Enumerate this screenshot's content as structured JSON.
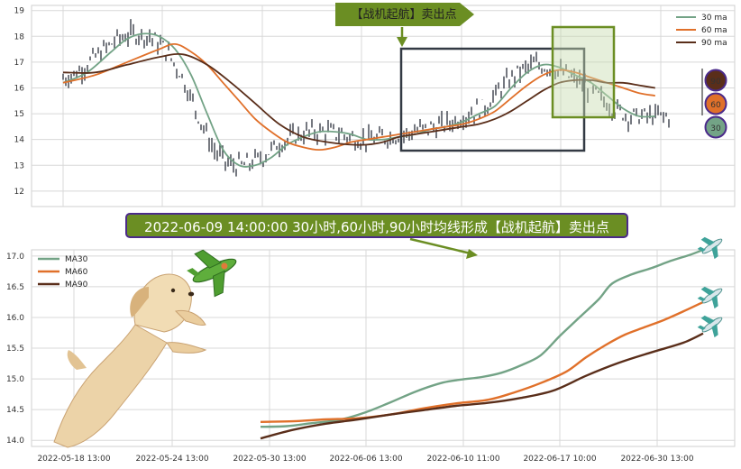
{
  "top_callout": "【战机起航】卖出点",
  "banner_text": "2022-06-09 14:00:00 30小时,60小时,90小时均线形成【战机起航】卖出点",
  "colors": {
    "ma30": "#73a386",
    "ma60": "#e0702a",
    "ma90": "#5a2e1a",
    "candle": "#3a3f4a",
    "callout": "#6b8e23",
    "badge_border": "#4b2a8a",
    "highlight_fill": "#c8dbb0",
    "highlight_stroke": "#6b8e23",
    "grid": "#d8d8d8"
  },
  "badges": [
    "90",
    "60",
    "30"
  ],
  "chart_data": [
    {
      "type": "line",
      "title": "",
      "ylim": [
        11.4,
        19.2
      ],
      "yticks": [
        "12",
        "13",
        "14",
        "15",
        "16",
        "17",
        "18",
        "19"
      ],
      "legend_position": "top-right",
      "series": [
        {
          "name": "30 ma",
          "values": [
            [
              0,
              16.2
            ],
            [
              3,
              16.6
            ],
            [
              6,
              17.4
            ],
            [
              8,
              17.9
            ],
            [
              10,
              18.1
            ],
            [
              12,
              18.0
            ],
            [
              14,
              17.5
            ],
            [
              16,
              16.5
            ],
            [
              18,
              15.0
            ],
            [
              20,
              13.6
            ],
            [
              22,
              13.0
            ],
            [
              24,
              13.0
            ],
            [
              26,
              13.3
            ],
            [
              28,
              13.8
            ],
            [
              30,
              14.1
            ],
            [
              32,
              14.3
            ],
            [
              34,
              14.3
            ],
            [
              36,
              14.2
            ],
            [
              38,
              14.0
            ],
            [
              40,
              14.0
            ],
            [
              42,
              14.1
            ],
            [
              44,
              14.2
            ],
            [
              46,
              14.4
            ],
            [
              48,
              14.5
            ],
            [
              50,
              14.7
            ],
            [
              52,
              15.0
            ],
            [
              54,
              15.3
            ],
            [
              56,
              16.0
            ],
            [
              58,
              16.6
            ],
            [
              60,
              16.9
            ],
            [
              62,
              16.8
            ],
            [
              64,
              16.5
            ],
            [
              66,
              16.2
            ],
            [
              68,
              15.7
            ],
            [
              70,
              15.2
            ],
            [
              72,
              14.9
            ],
            [
              74,
              14.9
            ]
          ]
        },
        {
          "name": "60 ma",
          "values": [
            [
              0,
              16.2
            ],
            [
              4,
              16.5
            ],
            [
              8,
              17.0
            ],
            [
              12,
              17.5
            ],
            [
              14,
              17.7
            ],
            [
              16,
              17.4
            ],
            [
              18,
              16.9
            ],
            [
              20,
              16.2
            ],
            [
              22,
              15.5
            ],
            [
              24,
              14.8
            ],
            [
              26,
              14.3
            ],
            [
              28,
              13.9
            ],
            [
              30,
              13.7
            ],
            [
              32,
              13.6
            ],
            [
              34,
              13.7
            ],
            [
              36,
              13.9
            ],
            [
              38,
              14.0
            ],
            [
              40,
              14.1
            ],
            [
              42,
              14.2
            ],
            [
              44,
              14.3
            ],
            [
              46,
              14.4
            ],
            [
              48,
              14.5
            ],
            [
              50,
              14.6
            ],
            [
              52,
              14.8
            ],
            [
              54,
              15.1
            ],
            [
              56,
              15.6
            ],
            [
              58,
              16.1
            ],
            [
              60,
              16.5
            ],
            [
              62,
              16.7
            ],
            [
              64,
              16.6
            ],
            [
              66,
              16.4
            ],
            [
              68,
              16.2
            ],
            [
              70,
              16.0
            ],
            [
              72,
              15.8
            ],
            [
              74,
              15.7
            ]
          ]
        },
        {
          "name": "90 ma",
          "values": [
            [
              0,
              16.6
            ],
            [
              4,
              16.6
            ],
            [
              8,
              16.9
            ],
            [
              12,
              17.2
            ],
            [
              15,
              17.3
            ],
            [
              18,
              16.9
            ],
            [
              21,
              16.2
            ],
            [
              24,
              15.4
            ],
            [
              27,
              14.6
            ],
            [
              30,
              14.1
            ],
            [
              33,
              13.9
            ],
            [
              36,
              13.8
            ],
            [
              38,
              13.8
            ],
            [
              40,
              13.9
            ],
            [
              42,
              14.1
            ],
            [
              44,
              14.2
            ],
            [
              46,
              14.3
            ],
            [
              48,
              14.4
            ],
            [
              50,
              14.5
            ],
            [
              52,
              14.6
            ],
            [
              54,
              14.8
            ],
            [
              56,
              15.1
            ],
            [
              58,
              15.5
            ],
            [
              60,
              15.9
            ],
            [
              62,
              16.2
            ],
            [
              64,
              16.3
            ],
            [
              66,
              16.3
            ],
            [
              68,
              16.2
            ],
            [
              70,
              16.2
            ],
            [
              72,
              16.1
            ],
            [
              74,
              16.0
            ]
          ]
        }
      ]
    },
    {
      "type": "line",
      "title": "",
      "ylim": [
        13.9,
        17.1
      ],
      "yticks": [
        "14.0",
        "14.5",
        "15.0",
        "15.5",
        "16.0",
        "16.5",
        "17.0"
      ],
      "xticks": [
        "2022-05-18 13:00",
        "2022-05-24 13:00",
        "2022-05-30 13:00",
        "2022-06-06 13:00",
        "2022-06-10 11:00",
        "2022-06-17 10:00",
        "2022-06-30 13:00"
      ],
      "legend_position": "top-left",
      "series": [
        {
          "name": "MA30",
          "values": [
            [
              0,
              14.22
            ],
            [
              8,
              14.23
            ],
            [
              16,
              14.28
            ],
            [
              24,
              14.33
            ],
            [
              32,
              14.45
            ],
            [
              40,
              14.62
            ],
            [
              48,
              14.8
            ],
            [
              56,
              14.94
            ],
            [
              62,
              14.99
            ],
            [
              68,
              15.03
            ],
            [
              74,
              15.1
            ],
            [
              80,
              15.22
            ],
            [
              86,
              15.38
            ],
            [
              92,
              15.7
            ],
            [
              98,
              16.0
            ],
            [
              104,
              16.3
            ],
            [
              108,
              16.55
            ],
            [
              114,
              16.7
            ],
            [
              120,
              16.8
            ],
            [
              126,
              16.92
            ],
            [
              132,
              17.02
            ],
            [
              136,
              17.1
            ]
          ]
        },
        {
          "name": "MA60",
          "values": [
            [
              0,
              14.3
            ],
            [
              10,
              14.31
            ],
            [
              20,
              14.34
            ],
            [
              30,
              14.36
            ],
            [
              40,
              14.42
            ],
            [
              50,
              14.52
            ],
            [
              60,
              14.6
            ],
            [
              70,
              14.66
            ],
            [
              78,
              14.78
            ],
            [
              86,
              14.93
            ],
            [
              94,
              15.12
            ],
            [
              100,
              15.35
            ],
            [
              106,
              15.55
            ],
            [
              112,
              15.72
            ],
            [
              118,
              15.84
            ],
            [
              124,
              15.96
            ],
            [
              130,
              16.1
            ],
            [
              136,
              16.25
            ]
          ]
        },
        {
          "name": "MA90",
          "values": [
            [
              0,
              14.03
            ],
            [
              10,
              14.17
            ],
            [
              20,
              14.27
            ],
            [
              30,
              14.34
            ],
            [
              40,
              14.42
            ],
            [
              50,
              14.49
            ],
            [
              60,
              14.56
            ],
            [
              70,
              14.61
            ],
            [
              80,
              14.69
            ],
            [
              90,
              14.81
            ],
            [
              100,
              15.05
            ],
            [
              110,
              15.26
            ],
            [
              120,
              15.43
            ],
            [
              130,
              15.59
            ],
            [
              136,
              15.74
            ]
          ]
        }
      ]
    }
  ]
}
